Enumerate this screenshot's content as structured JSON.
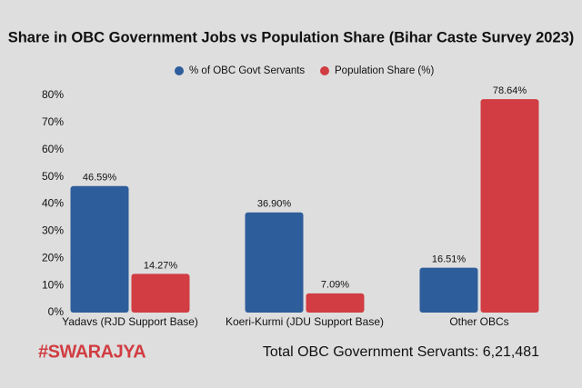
{
  "chart_data": {
    "type": "bar",
    "title": "Share in OBC Government Jobs vs Population Share (Bihar Caste Survey 2023)",
    "categories": [
      "Yadavs (RJD Support Base)",
      "Koeri-Kurmi (JDU Support Base)",
      "Other OBCs"
    ],
    "series": [
      {
        "name": "% of OBC Govt Servants",
        "color": "#2e5d9b",
        "values": [
          46.59,
          36.9,
          16.51
        ],
        "value_labels": [
          "46.59%",
          "36.90%",
          "16.51%"
        ]
      },
      {
        "name": "Population Share (%)",
        "color": "#d13d42",
        "values": [
          14.27,
          7.09,
          78.64
        ],
        "value_labels": [
          "14.27%",
          "7.09%",
          "78.64%"
        ]
      }
    ],
    "ylim": [
      0,
      80
    ],
    "yticks": [
      {
        "value": 0,
        "label": "0%"
      },
      {
        "value": 10,
        "label": "10%"
      },
      {
        "value": 20,
        "label": "20%"
      },
      {
        "value": 30,
        "label": "30%"
      },
      {
        "value": 40,
        "label": "40%"
      },
      {
        "value": 50,
        "label": "50%"
      },
      {
        "value": 60,
        "label": "60%"
      },
      {
        "value": 70,
        "label": "70%"
      },
      {
        "value": 80,
        "label": "80%"
      }
    ],
    "grid": false,
    "legend": "top",
    "logo": "#SWARAJYA",
    "annotation": "Total OBC Government Servants: 6,21,481"
  }
}
